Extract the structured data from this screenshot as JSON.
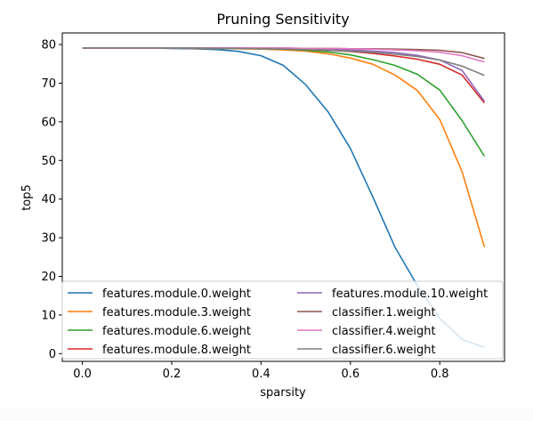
{
  "chart_data": {
    "type": "line",
    "title": "Pruning Sensitivity",
    "xlabel": "sparsity",
    "ylabel": "top5",
    "xlim": [
      -0.045,
      0.945
    ],
    "ylim": [
      -2,
      83
    ],
    "xticks": [
      0.0,
      0.2,
      0.4,
      0.6,
      0.8
    ],
    "xtick_labels": [
      "0.0",
      "0.2",
      "0.4",
      "0.6",
      "0.8"
    ],
    "yticks": [
      0,
      10,
      20,
      30,
      40,
      50,
      60,
      70,
      80
    ],
    "ytick_labels": [
      "0",
      "10",
      "20",
      "30",
      "40",
      "50",
      "60",
      "70",
      "80"
    ],
    "grid": false,
    "legend": "lower-center, 2 columns",
    "x": [
      0.0,
      0.05,
      0.1,
      0.15,
      0.2,
      0.25,
      0.3,
      0.35,
      0.4,
      0.45,
      0.5,
      0.55,
      0.6,
      0.65,
      0.7,
      0.75,
      0.8,
      0.85,
      0.9
    ],
    "series": [
      {
        "name": "features.module.0.weight",
        "color": "#1f77b4",
        "values": [
          79.1,
          79.1,
          79.1,
          79.1,
          79.0,
          78.9,
          78.7,
          78.2,
          77.1,
          74.6,
          69.6,
          62.6,
          53.1,
          40.6,
          27.5,
          17.6,
          9.1,
          3.7,
          1.6
        ]
      },
      {
        "name": "features.module.3.weight",
        "color": "#ff7f0e",
        "values": [
          79.1,
          79.1,
          79.1,
          79.1,
          79.1,
          79.0,
          79.0,
          78.9,
          78.8,
          78.6,
          78.3,
          77.6,
          76.5,
          74.9,
          72.1,
          68.1,
          60.6,
          47.1,
          27.6
        ]
      },
      {
        "name": "features.module.6.weight",
        "color": "#2ca02c",
        "values": [
          79.1,
          79.1,
          79.1,
          79.1,
          79.1,
          79.1,
          79.0,
          79.0,
          78.9,
          78.8,
          78.5,
          78.1,
          77.3,
          76.1,
          74.6,
          72.3,
          68.2,
          60.3,
          51.1
        ]
      },
      {
        "name": "features.module.8.weight",
        "color": "#d62728",
        "values": [
          79.1,
          79.1,
          79.1,
          79.1,
          79.1,
          79.1,
          79.1,
          79.0,
          79.0,
          78.9,
          78.7,
          78.5,
          78.2,
          77.7,
          77.0,
          76.2,
          74.9,
          72.1,
          64.9
        ]
      },
      {
        "name": "features.module.10.weight",
        "color": "#9467bd",
        "values": [
          79.1,
          79.1,
          79.1,
          79.1,
          79.1,
          79.1,
          79.1,
          79.1,
          79.0,
          79.0,
          78.9,
          78.8,
          78.6,
          78.3,
          77.9,
          77.2,
          76.0,
          73.3,
          65.3
        ]
      },
      {
        "name": "classifier.1.weight",
        "color": "#8c564b",
        "values": [
          79.1,
          79.1,
          79.1,
          79.1,
          79.1,
          79.1,
          79.1,
          79.1,
          79.1,
          79.1,
          79.0,
          79.0,
          78.9,
          78.9,
          78.8,
          78.7,
          78.5,
          77.9,
          76.4
        ]
      },
      {
        "name": "classifier.4.weight",
        "color": "#e377c2",
        "values": [
          79.1,
          79.1,
          79.1,
          79.1,
          79.1,
          79.1,
          79.1,
          79.1,
          79.1,
          79.1,
          79.0,
          79.0,
          78.9,
          78.8,
          78.6,
          78.4,
          78.0,
          77.1,
          75.5
        ]
      },
      {
        "name": "classifier.6.weight",
        "color": "#7f7f7f",
        "values": [
          79.1,
          79.1,
          79.1,
          79.1,
          79.1,
          79.1,
          79.0,
          79.0,
          78.9,
          78.8,
          78.7,
          78.5,
          78.3,
          78.0,
          77.5,
          76.9,
          76.0,
          74.4,
          72.0
        ]
      }
    ]
  }
}
